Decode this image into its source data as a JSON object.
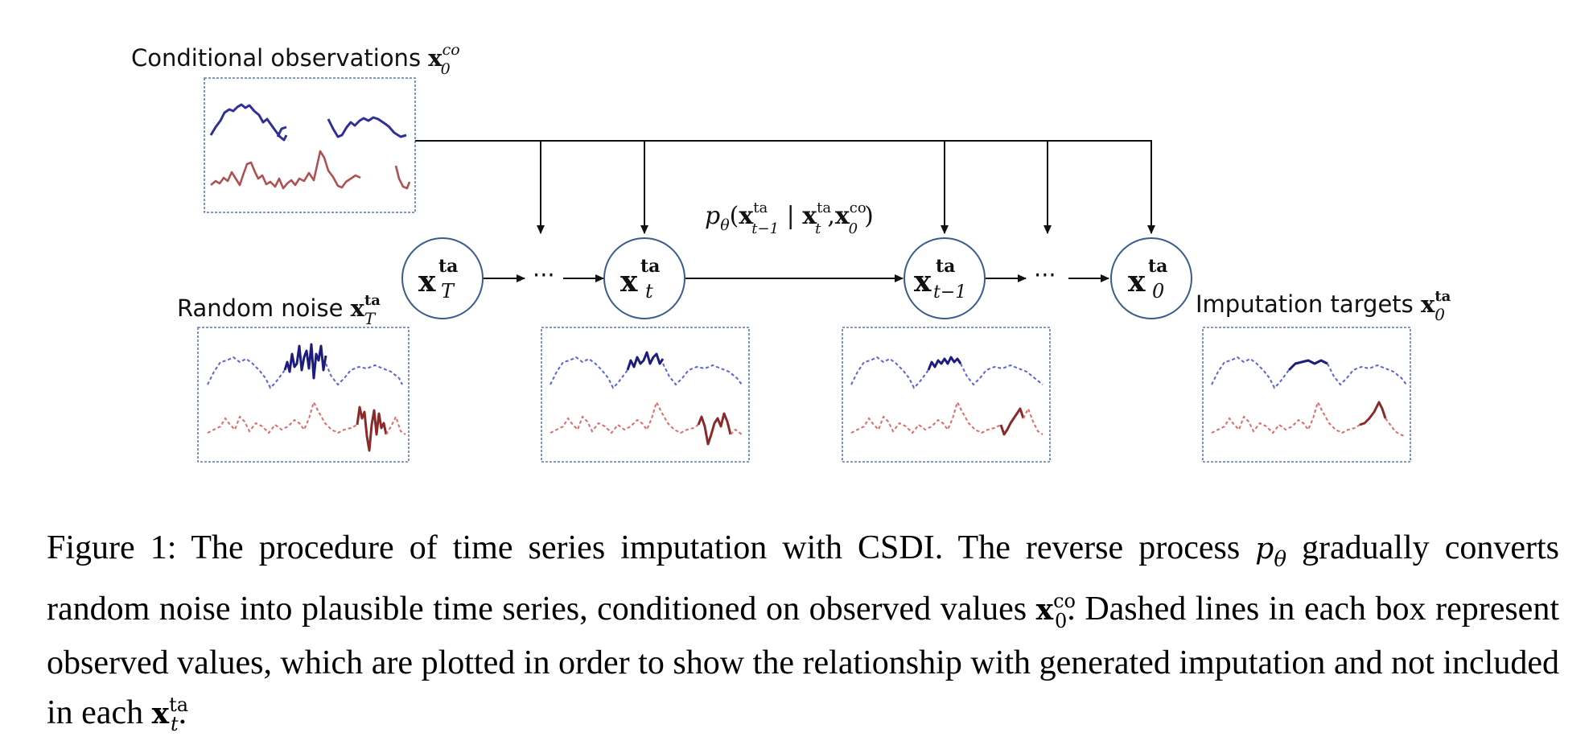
{
  "labels": {
    "conditional": "Conditional observations",
    "random_noise": "Random noise",
    "imputation_targets": "Imputation targets",
    "transition": "pθ(x",
    "ellipsis": "···"
  },
  "math": {
    "x": "x",
    "sup_ta": "ta",
    "sup_co": "co",
    "sub_T": "T",
    "sub_t": "t",
    "sub_t_minus_1": "t−1",
    "sub_0": "0",
    "p": "p",
    "theta": "θ"
  },
  "caption": {
    "figure_label": "Figure 1:",
    "part1": "The procedure of time series imputation with CSDI. The reverse process ",
    "part2": " gradually converts random noise into plausible time series, conditioned on observed values ",
    "part3": ". Dashed lines in each box represent observed values, which are plotted in order to show the relationship with generated imputation and not included in each ",
    "part4": "."
  },
  "colors": {
    "blue_series": "#2f2f9a",
    "red_series": "#b05050",
    "node_stroke": "#3b5b8c"
  }
}
